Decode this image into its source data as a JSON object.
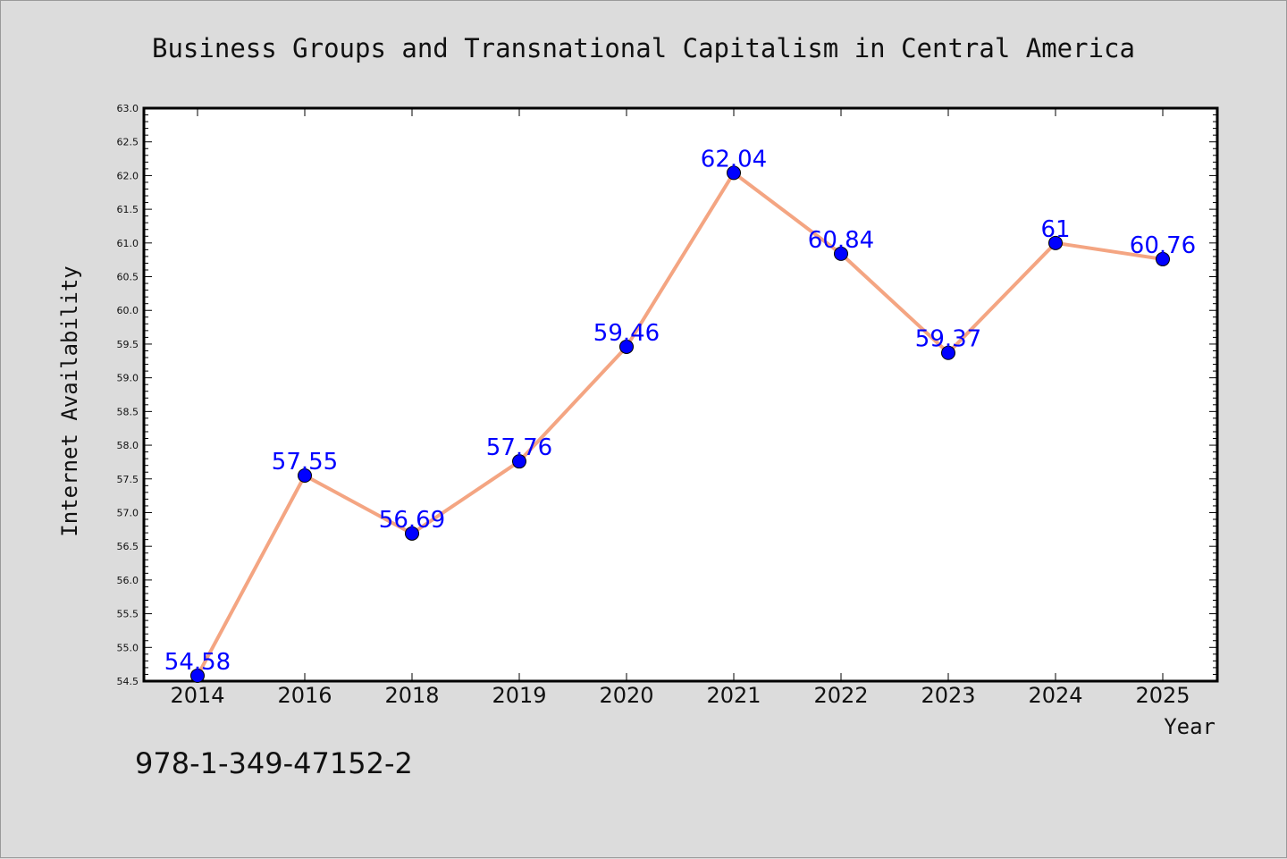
{
  "chart_data": {
    "type": "line",
    "title": "Business Groups and Transnational Capitalism in Central America",
    "xlabel": "Year",
    "ylabel": "Internet Availability",
    "categories": [
      "2014",
      "2016",
      "2018",
      "2019",
      "2020",
      "2021",
      "2022",
      "2023",
      "2024",
      "2025"
    ],
    "series": [
      {
        "values": [
          54.58,
          57.55,
          56.69,
          57.76,
          59.46,
          62.04,
          60.84,
          59.37,
          61,
          60.76
        ],
        "data_labels": [
          "54.58",
          "57.55",
          "56.69",
          "57.76",
          "59.46",
          "62.04",
          "60.84",
          "59.37",
          "61",
          "60.76"
        ],
        "line_color": "#f4a582",
        "marker_color": "#0000ff"
      }
    ],
    "ylim": [
      54.5,
      63.0
    ],
    "yticks": [
      "54.5",
      "55.0",
      "55.5",
      "56.0",
      "56.5",
      "57.0",
      "57.5",
      "58.0",
      "58.5",
      "59.0",
      "59.5",
      "60.0",
      "60.5",
      "61.0",
      "61.5",
      "62.0",
      "62.5",
      "63.0"
    ],
    "grid": false,
    "label_color": "#0000ff"
  },
  "footer": {
    "isbn": "978-1-349-47152-2"
  },
  "colors": {
    "background": "#dcdcdc",
    "plot_area": "#ffffff"
  }
}
